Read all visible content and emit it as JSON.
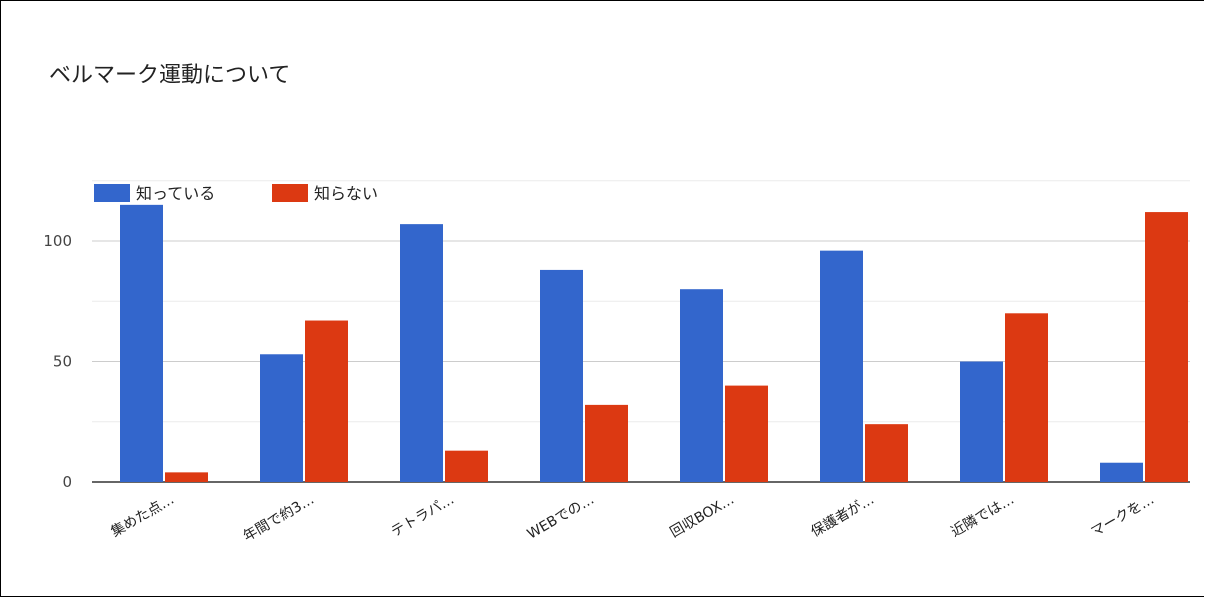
{
  "chart_data": {
    "type": "bar",
    "title": "ベルマーク運動について",
    "xlabel": "",
    "ylabel": "",
    "categories": [
      "集めた点…",
      "年間で約3…",
      "テトラパ…",
      "WEBでの…",
      "回収BOX…",
      "保護者が…",
      "近隣では…",
      "マークを…"
    ],
    "series": [
      {
        "name": "知っている",
        "color": "#3366cc",
        "values": [
          115,
          53,
          107,
          88,
          80,
          96,
          50,
          8
        ]
      },
      {
        "name": "知らない",
        "color": "#dc3912",
        "values": [
          4,
          67,
          13,
          32,
          40,
          24,
          70,
          112
        ]
      }
    ],
    "ylim": [
      0,
      125
    ],
    "yticks": [
      0,
      50,
      100
    ],
    "grid": true,
    "legend_position": "top-left"
  }
}
